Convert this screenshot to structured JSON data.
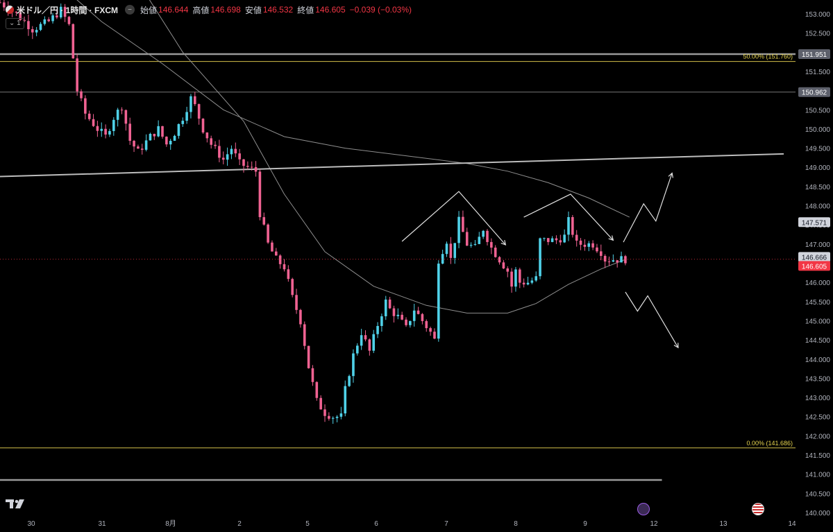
{
  "header": {
    "symbol": "米ドル／円 · 1時間 · FXCM",
    "open_label": "始値",
    "open": "146.644",
    "high_label": "高値",
    "high": "146.698",
    "low_label": "安値",
    "low": "146.532",
    "close_label": "終値",
    "close": "146.605",
    "change": "−0.039 (−0.03%)",
    "indicator_toggle": "1"
  },
  "chart_data": {
    "type": "candlestick",
    "timeframe": "1時間",
    "ylim": [
      140.0,
      153.0
    ],
    "y_ticks": [
      "153.000",
      "152.500",
      "152.000",
      "151.500",
      "151.000",
      "150.500",
      "150.000",
      "149.500",
      "149.000",
      "148.500",
      "148.000",
      "147.500",
      "147.000",
      "146.500",
      "146.000",
      "145.500",
      "145.000",
      "144.500",
      "144.000",
      "143.500",
      "143.000",
      "142.500",
      "142.000",
      "141.500",
      "141.000",
      "140.500",
      "140.000"
    ],
    "x_ticks": [
      "30",
      "31",
      "8月",
      "2",
      "5",
      "6",
      "7",
      "8",
      "9",
      "12",
      "13",
      "14"
    ],
    "price_labels": [
      {
        "value": 151.951,
        "text": "151.951"
      },
      {
        "value": 150.962,
        "text": "150.962"
      },
      {
        "value": 147.571,
        "text": "147.571"
      },
      {
        "value": 146.666,
        "text": "146.666"
      },
      {
        "value": 146.605,
        "text": "146.605",
        "color": "#f23645"
      }
    ],
    "fib_levels": [
      {
        "value": 151.76,
        "text": "50.00% (151.760)"
      },
      {
        "value": 141.686,
        "text": "0.00% (141.686)"
      }
    ],
    "candle_path_close": [
      [
        0,
        153.3
      ],
      [
        4,
        153.0
      ],
      [
        8,
        152.6
      ],
      [
        12,
        152.8
      ],
      [
        15,
        153.1
      ],
      [
        17,
        152.7
      ],
      [
        19,
        151.0
      ],
      [
        21,
        150.4
      ],
      [
        24,
        150.0
      ],
      [
        26,
        149.8
      ],
      [
        28,
        150.3
      ],
      [
        30,
        150.6
      ],
      [
        32,
        149.7
      ],
      [
        34,
        149.4
      ],
      [
        37,
        149.8
      ],
      [
        39,
        150.0
      ],
      [
        41,
        149.6
      ],
      [
        43,
        149.9
      ],
      [
        45,
        150.3
      ],
      [
        47,
        150.8
      ],
      [
        48,
        150.6
      ],
      [
        50,
        150.0
      ],
      [
        52,
        149.6
      ],
      [
        55,
        149.2
      ],
      [
        57,
        149.5
      ],
      [
        59,
        149.1
      ],
      [
        61,
        149.0
      ],
      [
        63,
        148.9
      ],
      [
        64,
        147.8
      ],
      [
        66,
        147.0
      ],
      [
        68,
        146.6
      ],
      [
        70,
        146.4
      ],
      [
        72,
        145.6
      ],
      [
        74,
        145.0
      ],
      [
        76,
        143.8
      ],
      [
        78,
        142.9
      ],
      [
        80,
        142.6
      ],
      [
        82,
        142.5
      ],
      [
        84,
        142.5
      ],
      [
        85,
        143.2
      ],
      [
        87,
        144.1
      ],
      [
        89,
        144.7
      ],
      [
        91,
        144.2
      ],
      [
        93,
        144.9
      ],
      [
        95,
        145.5
      ],
      [
        96,
        145.3
      ],
      [
        98,
        145.1
      ],
      [
        100,
        144.8
      ],
      [
        102,
        145.3
      ],
      [
        104,
        145.0
      ],
      [
        106,
        144.7
      ],
      [
        107,
        144.5
      ],
      [
        108,
        146.6
      ],
      [
        110,
        147.1
      ],
      [
        111,
        146.6
      ],
      [
        113,
        147.6
      ],
      [
        115,
        147.0
      ],
      [
        117,
        146.9
      ],
      [
        119,
        147.4
      ],
      [
        121,
        146.9
      ],
      [
        123,
        146.6
      ],
      [
        125,
        146.3
      ],
      [
        126,
        145.9
      ],
      [
        127,
        146.3
      ],
      [
        128,
        146.0
      ],
      [
        130,
        146.0
      ],
      [
        132,
        146.1
      ],
      [
        133,
        147.1
      ],
      [
        135,
        147.1
      ],
      [
        137,
        147.1
      ],
      [
        139,
        147.2
      ],
      [
        140,
        147.6
      ],
      [
        142,
        147.0
      ],
      [
        144,
        147.0
      ],
      [
        146,
        147.0
      ],
      [
        148,
        146.8
      ],
      [
        149,
        146.6
      ],
      [
        151,
        146.6
      ],
      [
        154,
        146.605
      ]
    ],
    "moving_averages": [
      {
        "name": "ma_long",
        "points": [
          [
            10,
            154.2
          ],
          [
            25,
            152.8
          ],
          [
            40,
            151.7
          ],
          [
            55,
            150.5
          ],
          [
            70,
            149.8
          ],
          [
            85,
            149.5
          ],
          [
            100,
            149.3
          ],
          [
            115,
            149.1
          ],
          [
            125,
            148.9
          ],
          [
            135,
            148.6
          ],
          [
            145,
            148.2
          ],
          [
            155,
            147.7
          ]
        ]
      },
      {
        "name": "ma_short",
        "points": [
          [
            30,
            154.5
          ],
          [
            45,
            152.0
          ],
          [
            60,
            150.2
          ],
          [
            70,
            148.3
          ],
          [
            80,
            146.8
          ],
          [
            92,
            145.9
          ],
          [
            105,
            145.4
          ],
          [
            115,
            145.2
          ],
          [
            125,
            145.2
          ],
          [
            132,
            145.45
          ],
          [
            140,
            145.95
          ],
          [
            148,
            146.35
          ],
          [
            154,
            146.6
          ]
        ]
      }
    ],
    "trendline": {
      "from": [
        0,
        148.76
      ],
      "to": [
        193,
        149.35
      ]
    },
    "horizontal_lines": [
      {
        "value": 151.951,
        "weight": "thick"
      },
      {
        "value": 150.962,
        "weight": "thin"
      },
      {
        "value": 140.85,
        "weight": "thick",
        "x_end": 163
      }
    ],
    "annotations": [
      {
        "type": "arrow",
        "points": [
          [
            99,
            147.07
          ],
          [
            113,
            148.37
          ],
          [
            124.5,
            146.98
          ]
        ]
      },
      {
        "type": "arrow",
        "points": [
          [
            129,
            147.7
          ],
          [
            140.5,
            148.3
          ],
          [
            151,
            147.1
          ]
        ]
      },
      {
        "type": "arrow",
        "points": [
          [
            153.5,
            147.05
          ],
          [
            158.5,
            148.05
          ],
          [
            161.5,
            147.6
          ],
          [
            165.5,
            148.85
          ]
        ]
      },
      {
        "type": "arrow",
        "points": [
          [
            154,
            145.75
          ],
          [
            157,
            145.25
          ],
          [
            159.5,
            145.65
          ],
          [
            167,
            144.3
          ]
        ]
      }
    ]
  }
}
